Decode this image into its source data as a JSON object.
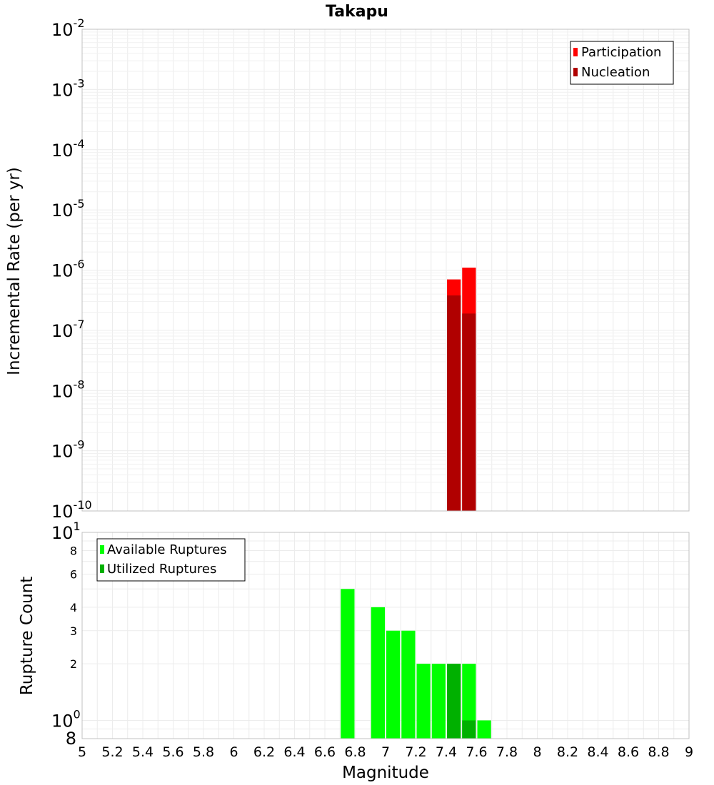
{
  "chart_data": [
    {
      "type": "bar",
      "title": "Takapu",
      "ylabel": "Incremental Rate (per yr)",
      "xlabel": "",
      "xlim": [
        5,
        9
      ],
      "ylim": [
        1e-10,
        0.01
      ],
      "yscale": "log",
      "bin_width": 0.1,
      "y_ticks": [
        {
          "base": "10",
          "exp": "-2"
        },
        {
          "base": "10",
          "exp": "-3"
        },
        {
          "base": "10",
          "exp": "-4"
        },
        {
          "base": "10",
          "exp": "-5"
        },
        {
          "base": "10",
          "exp": "-6"
        },
        {
          "base": "10",
          "exp": "-7"
        },
        {
          "base": "10",
          "exp": "-8"
        },
        {
          "base": "10",
          "exp": "-9"
        },
        {
          "base": "10",
          "exp": "-10"
        }
      ],
      "legend_position": "top-right",
      "series": [
        {
          "name": "Participation",
          "color": "#ff0000",
          "x": [
            7.45,
            7.55
          ],
          "values": [
            7e-07,
            1.1e-06
          ]
        },
        {
          "name": "Nucleation",
          "color": "#b00000",
          "x": [
            7.45,
            7.55
          ],
          "values": [
            3.8e-07,
            1.9e-07
          ]
        }
      ]
    },
    {
      "type": "bar",
      "title": "",
      "ylabel": "Rupture Count",
      "xlabel": "Magnitude",
      "xlim": [
        5,
        9
      ],
      "ylim": [
        0.8,
        10
      ],
      "yscale": "log",
      "bin_width": 0.1,
      "x_ticks": [
        "5",
        "5.2",
        "5.4",
        "5.6",
        "5.8",
        "6",
        "6.2",
        "6.4",
        "6.6",
        "6.8",
        "7",
        "7.2",
        "7.4",
        "7.6",
        "7.8",
        "8",
        "8.2",
        "8.4",
        "8.6",
        "8.8",
        "9"
      ],
      "y_ticks_small": [
        {
          "label": "8",
          "value": 8
        },
        {
          "label": "6",
          "value": 6
        },
        {
          "label": "4",
          "value": 4
        },
        {
          "label": "3",
          "value": 3
        },
        {
          "label": "2",
          "value": 2
        }
      ],
      "y_ticks_power": [
        {
          "base": "10",
          "exp": "1",
          "value": 10
        },
        {
          "base": "10",
          "exp": "0",
          "value": 1
        }
      ],
      "y_bottom_label": {
        "label": "8",
        "value": 0.8
      },
      "legend_position": "top-left",
      "series": [
        {
          "name": "Available Ruptures",
          "color": "#00ff00",
          "x": [
            6.75,
            6.95,
            7.05,
            7.15,
            7.25,
            7.35,
            7.45,
            7.55,
            7.65
          ],
          "values": [
            5,
            4,
            3,
            3,
            2,
            2,
            2,
            2,
            1
          ]
        },
        {
          "name": "Utilized Ruptures",
          "color": "#00b000",
          "x": [
            7.45,
            7.55
          ],
          "values": [
            2,
            1
          ]
        }
      ]
    }
  ]
}
